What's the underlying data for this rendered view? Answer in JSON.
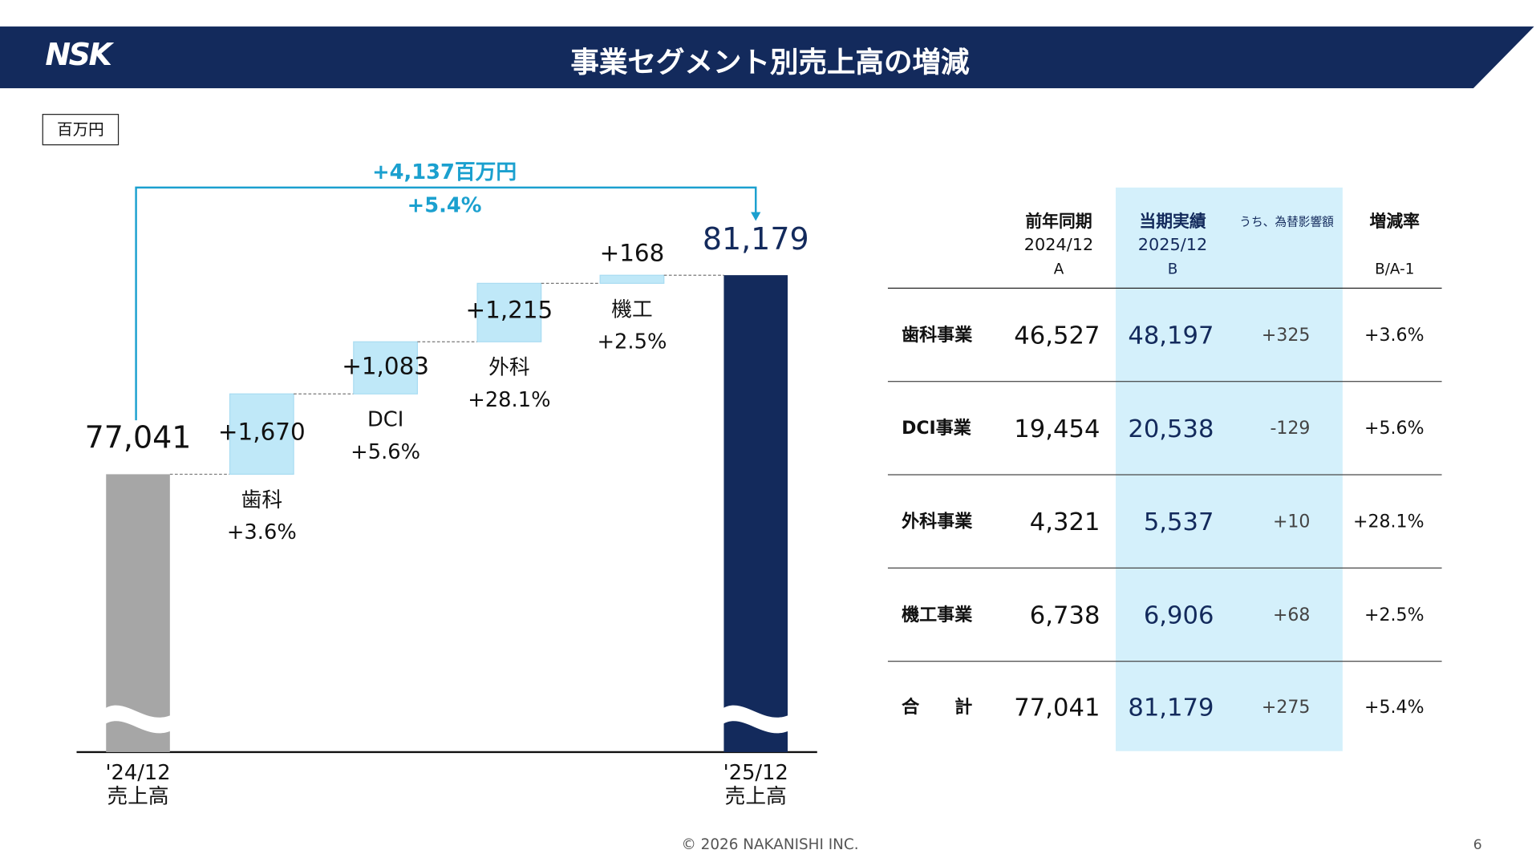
{
  "header": {
    "logo": "NSK",
    "title": "事業セグメント別売上高の増減"
  },
  "unit_label": "百万円",
  "colors": {
    "navy": "#132a5c",
    "gray": "#a6a6a6",
    "light_blue": "#bfe8f8",
    "cyan": "#1ba0cf",
    "highlight": "#d4f0fb"
  },
  "chart_data": {
    "type": "waterfall",
    "axis_break": true,
    "start": {
      "value": 77041,
      "label": "77,041",
      "category": [
        "'24/12",
        "売上高"
      ]
    },
    "end": {
      "value": 81179,
      "label": "81,179",
      "category": [
        "'25/12",
        "売上高"
      ]
    },
    "steps": [
      {
        "name": "歯科",
        "delta": 1670,
        "label": "+1,670",
        "rate": "+3.6%"
      },
      {
        "name": "DCI",
        "delta": 1083,
        "label": "+1,083",
        "rate": "+5.6%"
      },
      {
        "name": "外科",
        "delta": 1215,
        "label": "+1,215",
        "rate": "+28.1%"
      },
      {
        "name": "機工",
        "delta": 168,
        "label": "+168",
        "rate": "+2.5%"
      }
    ],
    "total_change": {
      "label": "+4,137百万円",
      "rate": "+5.4%"
    }
  },
  "table": {
    "headers": [
      {
        "title": "前年同期",
        "sub": "2024/12",
        "sub2": "A"
      },
      {
        "title": "当期実績",
        "sub": "2025/12",
        "sub2": "B"
      },
      {
        "title": "うち、為替影響額",
        "sub": "",
        "sub2": ""
      },
      {
        "title": "増減率",
        "sub": "",
        "sub2": "B/A-1"
      }
    ],
    "rows": [
      {
        "segment": "歯科事業",
        "prev": "46,527",
        "curr": "48,197",
        "fx": "+325",
        "rate": "+3.6%"
      },
      {
        "segment": "DCI事業",
        "prev": "19,454",
        "curr": "20,538",
        "fx": "-129",
        "rate": "+5.6%"
      },
      {
        "segment": "外科事業",
        "prev": "4,321",
        "curr": "5,537",
        "fx": "+10",
        "rate": "+28.1%"
      },
      {
        "segment": "機工事業",
        "prev": "6,738",
        "curr": "6,906",
        "fx": "+68",
        "rate": "+2.5%"
      },
      {
        "segment": "合　　計",
        "prev": "77,041",
        "curr": "81,179",
        "fx": "+275",
        "rate": "+5.4%"
      }
    ]
  },
  "footer": {
    "copyright": "© 2026 NAKANISHI INC.",
    "page": "6"
  }
}
